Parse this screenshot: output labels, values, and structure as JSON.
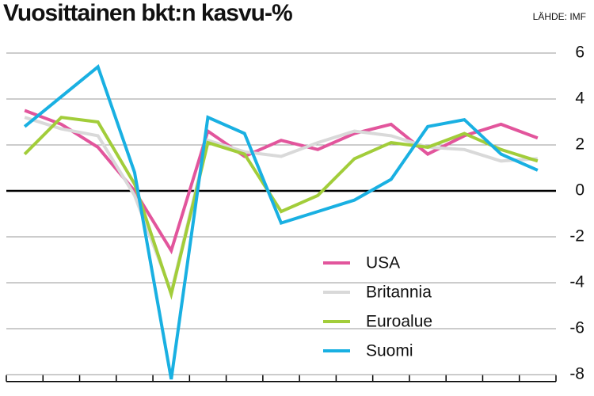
{
  "chart_data": {
    "type": "line",
    "title": "Vuosittainen bkt:n kasvu-%",
    "source": "LÄHDE: IMF",
    "categories": [
      null,
      null,
      null,
      null,
      null,
      null,
      null,
      null,
      null,
      null,
      null,
      null,
      null,
      null,
      null
    ],
    "series": [
      {
        "name": "USA",
        "color": "#e2559c",
        "values": [
          3.5,
          2.9,
          1.9,
          0.0,
          -2.6,
          2.6,
          1.5,
          2.2,
          1.8,
          2.5,
          2.9,
          1.6,
          2.4,
          2.9,
          2.3
        ]
      },
      {
        "name": "Britannia",
        "color": "#d9d9d9",
        "values": [
          3.2,
          2.7,
          2.4,
          -0.2,
          -4.4,
          2.2,
          1.7,
          1.5,
          2.1,
          2.6,
          2.4,
          1.9,
          1.8,
          1.3,
          1.4
        ]
      },
      {
        "name": "Euroalue",
        "color": "#a2cd3a",
        "values": [
          1.6,
          3.2,
          3.0,
          0.3,
          -4.5,
          2.1,
          1.6,
          -0.9,
          -0.2,
          1.4,
          2.1,
          1.9,
          2.5,
          1.8,
          1.3
        ]
      },
      {
        "name": "Suomi",
        "color": "#19b0e2",
        "values": [
          2.8,
          4.1,
          5.4,
          0.8,
          -8.2,
          3.2,
          2.5,
          -1.4,
          -0.9,
          -0.4,
          0.5,
          2.8,
          3.1,
          1.6,
          0.9
        ]
      }
    ],
    "ylim": [
      -8.3,
      6
    ],
    "yticks": [
      6,
      4,
      2,
      0,
      -2,
      -4,
      -6,
      -8
    ],
    "grid": true,
    "legend": "lower right"
  }
}
